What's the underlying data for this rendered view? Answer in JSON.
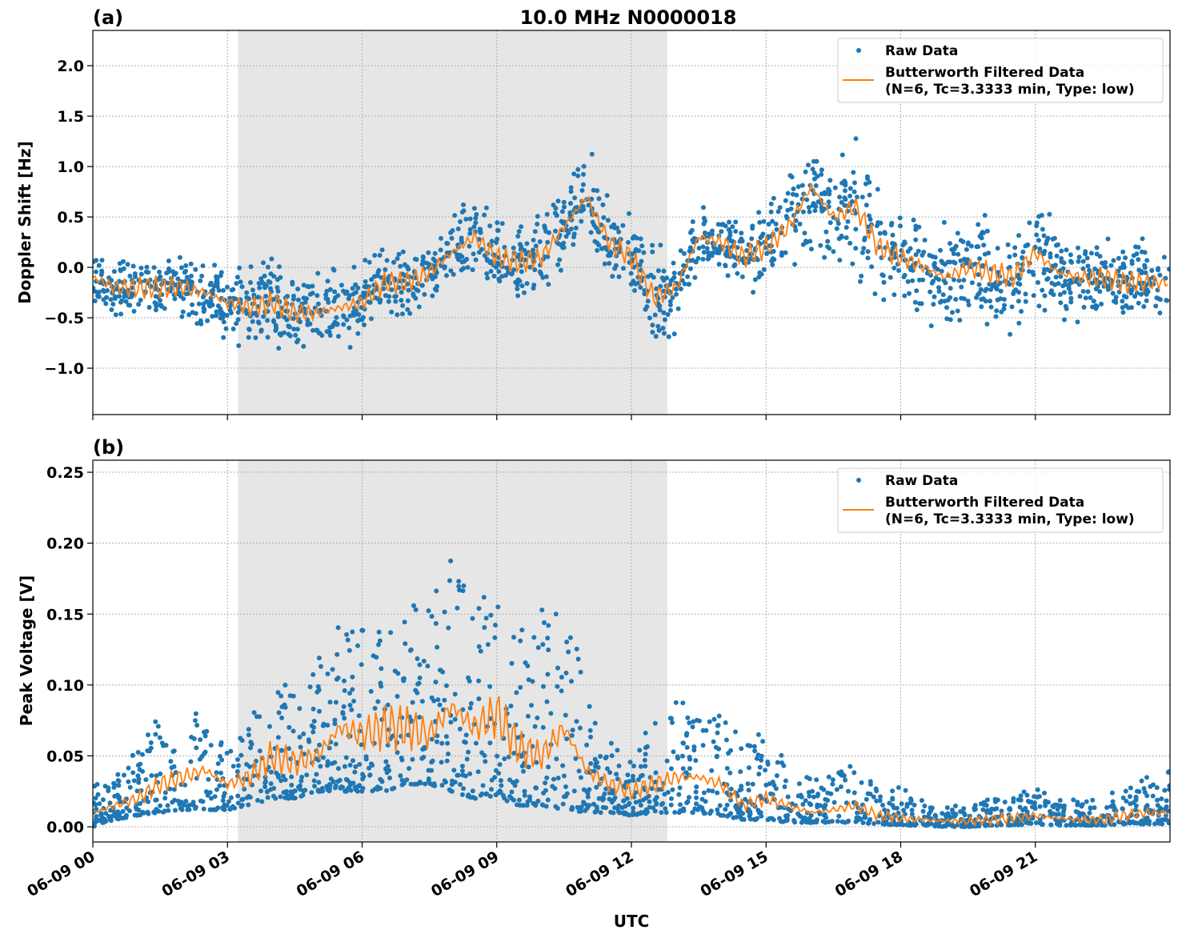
{
  "chart_data": [
    {
      "type": "scatter+line",
      "panel_label": "(a)",
      "title": "10.0 MHz N0000018",
      "xlabel": "",
      "ylabel": "Doppler Shift [Hz]",
      "x_ticks": [
        "06-09 00",
        "06-09 03",
        "06-09 06",
        "06-09 09",
        "06-09 12",
        "06-09 15",
        "06-09 18",
        "06-09 21"
      ],
      "y_ticks": [
        "2.0",
        "1.5",
        "1.0",
        "0.5",
        "0.0",
        "−0.5",
        "−1.0"
      ],
      "y_tick_values": [
        2.0,
        1.5,
        1.0,
        0.5,
        0.0,
        -0.5,
        -1.0
      ],
      "xlim": [
        "06-09 00:00",
        "06-10 00:00"
      ],
      "ylim": [
        -1.46,
        2.35
      ],
      "grid": true,
      "shaded_interval": [
        "06-09 03:14",
        "06-09 12:48"
      ],
      "shade_color": "#e6e6e6",
      "legend": {
        "placement": "top-right",
        "entries": [
          "Raw Data",
          "Butterworth Filtered Data",
          "(N=6, Tc=3.3333 min, Type: low)"
        ]
      },
      "series": [
        {
          "name": "Raw Data",
          "kind": "scatter",
          "color": "#1f77b4",
          "spread_half_width": [
            0.3,
            0.3,
            0.35,
            0.35,
            0.3,
            0.35,
            0.4,
            0.45,
            0.45,
            0.45,
            0.45,
            0.4,
            0.4,
            0.35,
            0.35,
            0.3,
            0.35,
            0.45,
            0.4,
            0.45,
            0.45,
            0.4,
            0.5,
            0.4,
            0.4,
            0.45,
            0.4,
            0.3,
            0.3,
            0.3,
            0.4,
            0.5,
            0.7,
            0.6,
            0.7,
            0.55,
            0.5,
            0.5,
            0.55,
            0.55,
            0.55,
            0.5,
            0.55,
            0.5,
            0.45,
            0.45,
            0.45,
            0.4,
            0.4
          ]
        },
        {
          "name": "Butterworth Filtered Data",
          "kind": "line",
          "color": "#ff7f0e",
          "x": [
            "00:00",
            "00:30",
            "01:00",
            "01:30",
            "02:00",
            "02:30",
            "03:00",
            "03:30",
            "04:00",
            "04:30",
            "05:00",
            "05:30",
            "06:00",
            "06:30",
            "07:00",
            "07:30",
            "08:00",
            "08:30",
            "09:00",
            "09:30",
            "10:00",
            "10:30",
            "11:00",
            "11:30",
            "12:00",
            "12:30",
            "13:00",
            "13:30",
            "14:00",
            "14:30",
            "15:00",
            "15:30",
            "16:00",
            "16:30",
            "17:00",
            "17:30",
            "18:00",
            "18:30",
            "19:00",
            "19:30",
            "20:00",
            "20:30",
            "21:00",
            "21:30",
            "22:00",
            "22:30",
            "23:00",
            "23:30",
            "24:00"
          ],
          "y": [
            -0.1,
            -0.2,
            -0.2,
            -0.2,
            -0.2,
            -0.25,
            -0.35,
            -0.4,
            -0.35,
            -0.45,
            -0.45,
            -0.4,
            -0.35,
            -0.15,
            -0.15,
            -0.05,
            0.15,
            0.3,
            0.1,
            0.05,
            0.1,
            0.4,
            0.7,
            0.25,
            0.1,
            -0.3,
            -0.2,
            0.3,
            0.25,
            0.1,
            0.2,
            0.4,
            0.8,
            0.5,
            0.6,
            0.2,
            0.1,
            0.0,
            -0.1,
            0.0,
            -0.05,
            -0.1,
            0.15,
            -0.05,
            -0.1,
            -0.1,
            -0.15,
            -0.15,
            -0.15
          ]
        }
      ]
    },
    {
      "type": "scatter+line",
      "panel_label": "(b)",
      "title": "",
      "xlabel": "UTC",
      "ylabel": "Peak Voltage [V]",
      "x_ticks": [
        "06-09 00",
        "06-09 03",
        "06-09 06",
        "06-09 09",
        "06-09 12",
        "06-09 15",
        "06-09 18",
        "06-09 21"
      ],
      "y_ticks": [
        "0.25",
        "0.20",
        "0.15",
        "0.10",
        "0.05",
        "0.00"
      ],
      "y_tick_values": [
        0.25,
        0.2,
        0.15,
        0.1,
        0.05,
        0.0
      ],
      "xlim": [
        "06-09 00:00",
        "06-10 00:00"
      ],
      "ylim": [
        -0.0107,
        0.2585
      ],
      "grid": true,
      "shaded_interval": [
        "06-09 03:14",
        "06-09 12:48"
      ],
      "shade_color": "#e6e6e6",
      "legend": {
        "placement": "top-right",
        "entries": [
          "Raw Data",
          "Butterworth Filtered Data",
          "(N=6, Tc=3.3333 min, Type: low)"
        ]
      },
      "series": [
        {
          "name": "Raw Data",
          "kind": "scatter",
          "color": "#1f77b4",
          "upper": [
            0.03,
            0.035,
            0.06,
            0.08,
            0.07,
            0.09,
            0.06,
            0.08,
            0.1,
            0.1,
            0.12,
            0.15,
            0.14,
            0.14,
            0.15,
            0.17,
            0.2,
            0.17,
            0.18,
            0.14,
            0.16,
            0.18,
            0.09,
            0.06,
            0.05,
            0.08,
            0.09,
            0.1,
            0.08,
            0.06,
            0.08,
            0.04,
            0.035,
            0.04,
            0.05,
            0.025,
            0.03,
            0.02,
            0.015,
            0.015,
            0.02,
            0.02,
            0.03,
            0.02,
            0.02,
            0.02,
            0.03,
            0.035,
            0.04
          ],
          "lower": [
            0.0,
            0.005,
            0.008,
            0.01,
            0.012,
            0.012,
            0.012,
            0.015,
            0.02,
            0.02,
            0.025,
            0.025,
            0.025,
            0.025,
            0.03,
            0.03,
            0.025,
            0.02,
            0.02,
            0.015,
            0.015,
            0.012,
            0.01,
            0.01,
            0.008,
            0.01,
            0.01,
            0.01,
            0.008,
            0.005,
            0.005,
            0.003,
            0.003,
            0.003,
            0.003,
            0.002,
            0.001,
            0.001,
            0.0,
            0.0,
            0.001,
            0.001,
            0.002,
            0.001,
            0.001,
            0.001,
            0.002,
            0.002,
            0.002
          ]
        },
        {
          "name": "Butterworth Filtered Data",
          "kind": "line",
          "color": "#ff7f0e",
          "x": [
            "00:00",
            "00:30",
            "01:00",
            "01:30",
            "02:00",
            "02:30",
            "03:00",
            "03:30",
            "04:00",
            "04:30",
            "05:00",
            "05:30",
            "06:00",
            "06:30",
            "07:00",
            "07:30",
            "08:00",
            "08:30",
            "09:00",
            "09:30",
            "10:00",
            "10:30",
            "11:00",
            "11:30",
            "12:00",
            "12:30",
            "13:00",
            "13:30",
            "14:00",
            "14:30",
            "15:00",
            "15:30",
            "16:00",
            "16:30",
            "17:00",
            "17:30",
            "18:00",
            "18:30",
            "19:00",
            "19:30",
            "20:00",
            "20:30",
            "21:00",
            "21:30",
            "22:00",
            "22:30",
            "23:00",
            "23:30",
            "24:00"
          ],
          "y": [
            0.01,
            0.015,
            0.02,
            0.03,
            0.035,
            0.04,
            0.03,
            0.035,
            0.05,
            0.045,
            0.05,
            0.07,
            0.065,
            0.07,
            0.07,
            0.065,
            0.085,
            0.07,
            0.08,
            0.055,
            0.05,
            0.07,
            0.04,
            0.03,
            0.025,
            0.03,
            0.035,
            0.035,
            0.03,
            0.015,
            0.02,
            0.015,
            0.01,
            0.012,
            0.015,
            0.008,
            0.006,
            0.005,
            0.004,
            0.004,
            0.005,
            0.006,
            0.008,
            0.006,
            0.005,
            0.005,
            0.008,
            0.01,
            0.01
          ]
        }
      ]
    }
  ]
}
